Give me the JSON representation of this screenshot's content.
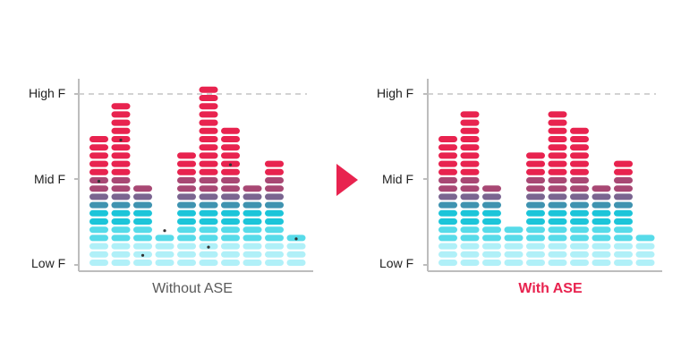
{
  "colors": {
    "axis": "#bdbdbd",
    "dash": "#c4c4c4",
    "arrow": "#e8234f",
    "caption_left": "#5a5a5a",
    "caption_right": "#e8234f",
    "dot": "#333333",
    "bands": [
      "#b0f0f8",
      "#57dbe9",
      "#1cc5d9",
      "#3f93b0",
      "#7a6590",
      "#a84874",
      "#e8234f"
    ]
  },
  "level_labels": [
    "Low F",
    "Mid F",
    "High F"
  ],
  "panels": [
    {
      "caption": "Without ASE",
      "columns": [
        {
          "blocks": 16,
          "dot_after": 10
        },
        {
          "blocks": 20,
          "dot_after": 15
        },
        {
          "blocks": 10,
          "dot_after": 1
        },
        {
          "blocks": 4,
          "dot_after": 4
        },
        {
          "blocks": 14,
          "dot_after": null
        },
        {
          "blocks": 22,
          "dot_after": 2
        },
        {
          "blocks": 17,
          "dot_after": 12
        },
        {
          "blocks": 10,
          "dot_after": null
        },
        {
          "blocks": 13,
          "dot_after": null
        },
        {
          "blocks": 4,
          "dot_after": 3
        }
      ]
    },
    {
      "caption": "With ASE",
      "columns": [
        {
          "blocks": 16
        },
        {
          "blocks": 19
        },
        {
          "blocks": 10
        },
        {
          "blocks": 5
        },
        {
          "blocks": 14
        },
        {
          "blocks": 19
        },
        {
          "blocks": 17
        },
        {
          "blocks": 10
        },
        {
          "blocks": 13
        },
        {
          "blocks": 4
        }
      ]
    }
  ]
}
